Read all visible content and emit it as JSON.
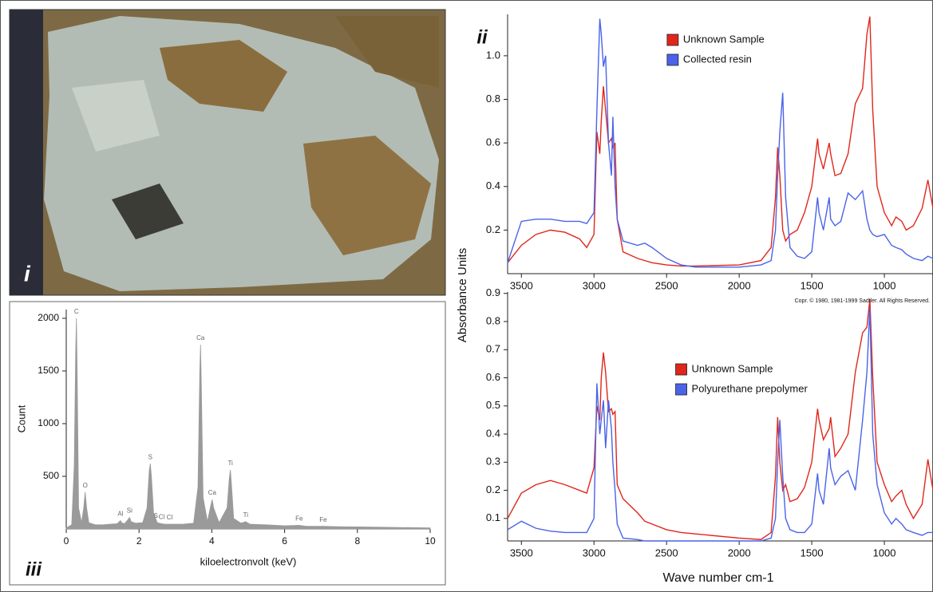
{
  "photo": {
    "panel_label": "i"
  },
  "chart_data": [
    {
      "type": "area",
      "panel_label": "iii",
      "xlabel": "kiloelectronvolt (keV)",
      "ylabel": "Count",
      "color": "#9a9a9a",
      "xlim": [
        0,
        10
      ],
      "ylim": [
        0,
        2083
      ],
      "xticks": [
        0,
        2,
        4,
        6,
        8,
        10
      ],
      "yticks": [
        500,
        1000,
        1500,
        2000
      ],
      "x": [
        0,
        0.15,
        0.22,
        0.26,
        0.28,
        0.3,
        0.34,
        0.42,
        0.48,
        0.52,
        0.56,
        0.62,
        0.8,
        1.0,
        1.2,
        1.4,
        1.46,
        1.49,
        1.52,
        1.6,
        1.7,
        1.74,
        1.78,
        1.9,
        2.1,
        2.22,
        2.28,
        2.31,
        2.34,
        2.4,
        2.5,
        2.62,
        2.7,
        2.9,
        3.2,
        3.5,
        3.62,
        3.67,
        3.69,
        3.71,
        3.76,
        3.88,
        3.97,
        4.01,
        4.05,
        4.2,
        4.42,
        4.48,
        4.51,
        4.54,
        4.6,
        4.8,
        4.93,
        5.05,
        5.5,
        6.0,
        6.4,
        6.6,
        7.06,
        7.5,
        8.5,
        10
      ],
      "values": [
        10,
        40,
        600,
        1700,
        2000,
        1500,
        200,
        60,
        200,
        350,
        200,
        60,
        40,
        40,
        45,
        50,
        70,
        80,
        60,
        50,
        90,
        110,
        70,
        55,
        60,
        200,
        550,
        620,
        500,
        150,
        60,
        50,
        45,
        45,
        45,
        55,
        400,
        1500,
        1750,
        1400,
        300,
        70,
        220,
        280,
        200,
        60,
        200,
        480,
        560,
        420,
        100,
        55,
        70,
        45,
        40,
        30,
        35,
        25,
        25,
        22,
        18,
        10
      ],
      "annotations": [
        {
          "text": "C",
          "x": 0.28,
          "y": 2000
        },
        {
          "text": "O",
          "x": 0.52,
          "y": 350
        },
        {
          "text": "Al",
          "x": 1.49,
          "y": 80
        },
        {
          "text": "Si",
          "x": 1.74,
          "y": 110
        },
        {
          "text": "S",
          "x": 2.31,
          "y": 620
        },
        {
          "text": "S",
          "x": 2.46,
          "y": 60
        },
        {
          "text": "Cl",
          "x": 2.62,
          "y": 50
        },
        {
          "text": "Cl",
          "x": 2.84,
          "y": 45
        },
        {
          "text": "Ca",
          "x": 3.69,
          "y": 1750
        },
        {
          "text": "Ca",
          "x": 4.01,
          "y": 280
        },
        {
          "text": "Ti",
          "x": 4.51,
          "y": 560
        },
        {
          "text": "Ti",
          "x": 4.93,
          "y": 70
        },
        {
          "text": "Fe",
          "x": 6.4,
          "y": 35
        },
        {
          "text": "Fe",
          "x": 7.06,
          "y": 25
        }
      ]
    },
    {
      "type": "line",
      "panel_label": "ii",
      "ylabel": "Absorbance Units",
      "legend": "upper center",
      "xlim": [
        3595,
        665
      ],
      "ylim": [
        0,
        1.19
      ],
      "xticks": [
        3500,
        3000,
        2500,
        2000,
        1500,
        1000
      ],
      "yticks": [
        0.2,
        0.4,
        0.6,
        0.8,
        {
          "value": 1,
          "label": "1.0"
        }
      ],
      "x": [
        3595,
        3500,
        3400,
        3300,
        3200,
        3100,
        3050,
        3000,
        2980,
        2960,
        2950,
        2935,
        2920,
        2900,
        2880,
        2870,
        2855,
        2840,
        2800,
        2700,
        2650,
        2600,
        2500,
        2400,
        2300,
        2000,
        1850,
        1780,
        1750,
        1735,
        1720,
        1700,
        1680,
        1650,
        1600,
        1550,
        1500,
        1460,
        1450,
        1420,
        1380,
        1370,
        1340,
        1300,
        1250,
        1200,
        1150,
        1120,
        1100,
        1080,
        1050,
        1000,
        950,
        920,
        880,
        850,
        800,
        740,
        700,
        665
      ],
      "series": [
        {
          "name": "Unknown Sample",
          "color": "#e0261b",
          "values": [
            0.05,
            0.13,
            0.18,
            0.2,
            0.19,
            0.16,
            0.12,
            0.18,
            0.65,
            0.55,
            0.7,
            0.86,
            0.75,
            0.6,
            0.62,
            0.58,
            0.6,
            0.25,
            0.1,
            0.07,
            0.06,
            0.05,
            0.04,
            0.035,
            0.035,
            0.04,
            0.06,
            0.12,
            0.35,
            0.58,
            0.45,
            0.2,
            0.15,
            0.18,
            0.2,
            0.28,
            0.4,
            0.62,
            0.55,
            0.48,
            0.6,
            0.55,
            0.45,
            0.46,
            0.55,
            0.78,
            0.85,
            1.1,
            1.18,
            0.75,
            0.4,
            0.28,
            0.22,
            0.26,
            0.24,
            0.2,
            0.22,
            0.3,
            0.43,
            0.3
          ]
        },
        {
          "name": "Collected resin",
          "color": "#4a63e8",
          "values": [
            0.05,
            0.24,
            0.25,
            0.25,
            0.24,
            0.24,
            0.23,
            0.28,
            0.75,
            1.17,
            1.1,
            0.95,
            1.0,
            0.6,
            0.45,
            0.72,
            0.4,
            0.25,
            0.15,
            0.13,
            0.14,
            0.12,
            0.07,
            0.04,
            0.03,
            0.03,
            0.04,
            0.06,
            0.2,
            0.45,
            0.65,
            0.83,
            0.35,
            0.12,
            0.08,
            0.07,
            0.1,
            0.35,
            0.28,
            0.2,
            0.35,
            0.25,
            0.22,
            0.24,
            0.37,
            0.34,
            0.38,
            0.25,
            0.2,
            0.18,
            0.17,
            0.18,
            0.13,
            0.12,
            0.11,
            0.09,
            0.07,
            0.06,
            0.08,
            0.07
          ]
        }
      ]
    },
    {
      "type": "line",
      "xlabel": "Wave number cm-1",
      "note": "Copr. © 1980, 1981-1999 Sadtler. All Rights Reserved.",
      "legend": "center",
      "xlim": [
        3595,
        665
      ],
      "ylim": [
        0.02,
        0.905
      ],
      "xticks": [
        3500,
        3000,
        2500,
        2000,
        1500,
        1000
      ],
      "yticks": [
        0.1,
        0.2,
        0.3,
        0.4,
        0.5,
        0.6,
        0.7,
        0.8,
        0.9
      ],
      "x": [
        3595,
        3500,
        3400,
        3300,
        3200,
        3100,
        3050,
        3000,
        2980,
        2960,
        2950,
        2935,
        2920,
        2900,
        2880,
        2870,
        2855,
        2840,
        2800,
        2700,
        2650,
        2600,
        2500,
        2400,
        2300,
        2000,
        1850,
        1780,
        1750,
        1735,
        1720,
        1700,
        1680,
        1650,
        1600,
        1550,
        1500,
        1460,
        1450,
        1420,
        1380,
        1370,
        1340,
        1300,
        1250,
        1200,
        1150,
        1120,
        1100,
        1080,
        1050,
        1000,
        950,
        920,
        880,
        850,
        800,
        740,
        700,
        665
      ],
      "series": [
        {
          "name": "Unknown Sample",
          "color": "#e0261b",
          "values": [
            0.1,
            0.19,
            0.22,
            0.235,
            0.22,
            0.2,
            0.19,
            0.28,
            0.5,
            0.45,
            0.6,
            0.69,
            0.62,
            0.48,
            0.49,
            0.47,
            0.48,
            0.22,
            0.17,
            0.12,
            0.09,
            0.08,
            0.06,
            0.05,
            0.045,
            0.03,
            0.025,
            0.05,
            0.25,
            0.46,
            0.3,
            0.2,
            0.22,
            0.16,
            0.17,
            0.21,
            0.3,
            0.49,
            0.45,
            0.38,
            0.42,
            0.46,
            0.32,
            0.35,
            0.4,
            0.62,
            0.76,
            0.78,
            0.88,
            0.6,
            0.3,
            0.22,
            0.16,
            0.18,
            0.2,
            0.15,
            0.1,
            0.15,
            0.31,
            0.2
          ]
        },
        {
          "name": "Polyurethane prepolymer",
          "color": "#4a63e8",
          "values": [
            0.06,
            0.09,
            0.065,
            0.055,
            0.05,
            0.05,
            0.05,
            0.1,
            0.58,
            0.4,
            0.45,
            0.52,
            0.35,
            0.52,
            0.42,
            0.3,
            0.2,
            0.08,
            0.03,
            0.025,
            0.02,
            0.02,
            0.02,
            0.02,
            0.02,
            0.02,
            0.02,
            0.03,
            0.1,
            0.3,
            0.45,
            0.25,
            0.1,
            0.06,
            0.05,
            0.05,
            0.08,
            0.26,
            0.2,
            0.15,
            0.35,
            0.28,
            0.22,
            0.25,
            0.27,
            0.2,
            0.45,
            0.62,
            0.85,
            0.4,
            0.22,
            0.12,
            0.08,
            0.1,
            0.08,
            0.06,
            0.05,
            0.04,
            0.05,
            0.05
          ]
        }
      ]
    }
  ]
}
